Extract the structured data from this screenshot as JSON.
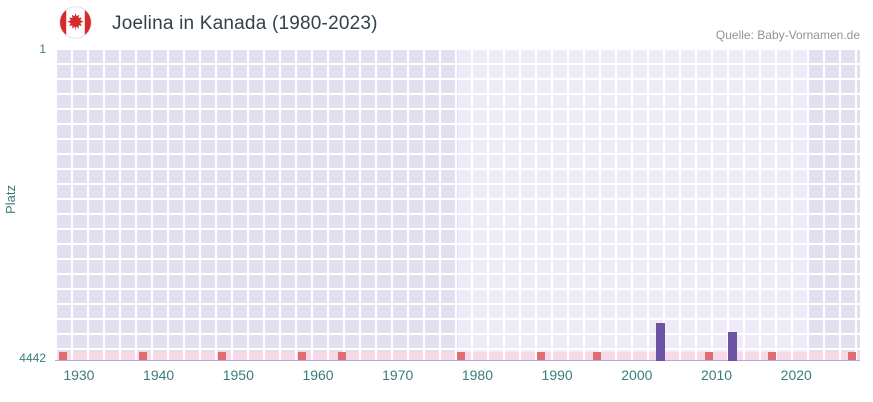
{
  "header": {
    "title": "Joelina in Kanada (1980-2023)",
    "source": "Quelle: Baby-Vornamen.de"
  },
  "chart_data": {
    "type": "bar",
    "title": "Joelina in Kanada (1980-2023)",
    "xlabel": "",
    "ylabel": "Platz",
    "y_axis": {
      "min": 1,
      "max": 4442,
      "inverted": true,
      "top_label": "1",
      "bottom_label": "4442"
    },
    "x_axis": {
      "min": 1927,
      "max": 2028,
      "ticks": [
        1930,
        1940,
        1950,
        1960,
        1970,
        1980,
        1990,
        2000,
        2010,
        2020
      ]
    },
    "series": [
      {
        "name": "Platz",
        "points": [
          {
            "year": 2003,
            "rank": 3905
          },
          {
            "year": 2012,
            "rank": 4030
          }
        ]
      }
    ],
    "baseline_markers": {
      "years": [
        1928,
        1938,
        1948,
        1958,
        1963,
        1978,
        1988,
        1995,
        2009,
        2017,
        2027
      ]
    },
    "highlight_band": {
      "from": 1977.5,
      "to": 2021.5
    },
    "grid": true,
    "legend_position": "none",
    "colors": {
      "bar": "#6e53a4",
      "plot_bg": "#e3def0",
      "band_bg": "#eeeaf8",
      "grid": "#ffffff",
      "strip_bg": "#f5d9e6",
      "marker": "#e06c74",
      "axis_text": "#3a7c7c",
      "title_text": "#32424c",
      "source_text": "#8f9498",
      "axis_line": "#b4a8d8",
      "flag_red": "#d52b2b"
    }
  }
}
